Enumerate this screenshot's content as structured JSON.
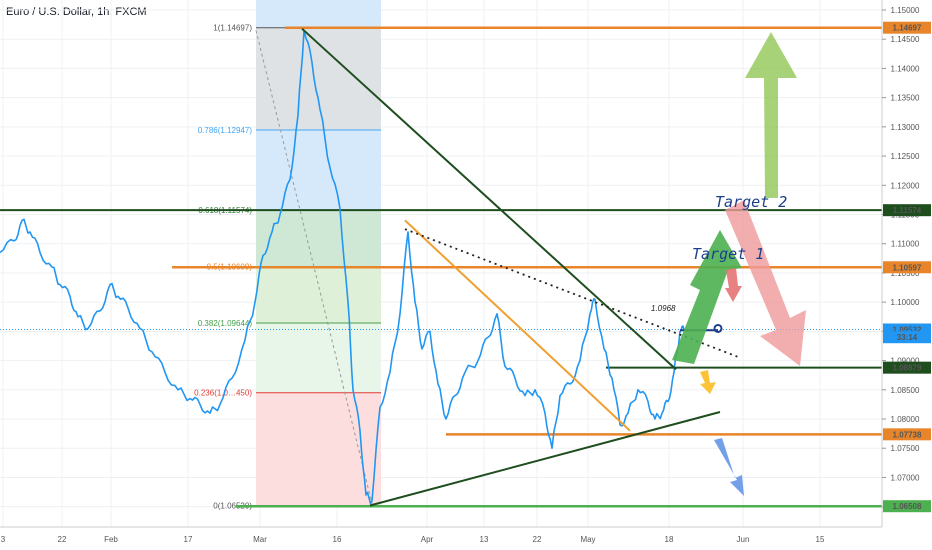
{
  "header": {
    "title": "Euro / U.S. Dollar, 1h, FXCM"
  },
  "colors": {
    "price": "#2196f3",
    "orange": "#e8852a",
    "darkgreen": "#1e4d1e",
    "green": "#4caf50",
    "grid": "#eef0f3"
  },
  "chart_data": {
    "type": "line",
    "title": "Euro / U.S. Dollar, 1h, FXCM",
    "ylim": [
      1.062,
      1.152
    ],
    "y_ticks": [
      "1.15000",
      "1.14500",
      "1.14000",
      "1.13500",
      "1.13000",
      "1.12500",
      "1.12000",
      "1.11500",
      "1.11000",
      "1.10500",
      "1.10000",
      "1.09500",
      "1.09000",
      "1.08500",
      "1.08000",
      "1.07500",
      "1.07000",
      "1.06500"
    ],
    "x_ticks": [
      "3",
      "22",
      "Feb",
      "17",
      "Mar",
      "16",
      "Apr",
      "13",
      "22",
      "May",
      "18",
      "Jun",
      "15"
    ],
    "fib_levels": [
      {
        "label": "1(1.14697)",
        "value": 1.14697,
        "color": "#555555"
      },
      {
        "label": "0.786(1.12947)",
        "value": 1.12947,
        "color": "#42a5f5"
      },
      {
        "label": "0.618(1.11574)",
        "value": 1.11574,
        "color": "#2e7d32"
      },
      {
        "label": "0.5(1.10609)",
        "value": 1.10609,
        "color": "#e8852a"
      },
      {
        "label": "0.382(1.09644)",
        "value": 1.09644,
        "color": "#43a047"
      },
      {
        "label": "0.236(1.0…450)",
        "value": 1.0845,
        "color": "#e53935"
      },
      {
        "label": "0(1.06520)",
        "value": 1.0652,
        "color": "#555555"
      }
    ],
    "price_labels": [
      {
        "text": "1.14697",
        "value": 1.14697,
        "bg": "#e8852a"
      },
      {
        "text": "1.11574",
        "value": 1.11574,
        "bg": "#1e4d1e"
      },
      {
        "text": "1.10597",
        "value": 1.10597,
        "bg": "#e8852a"
      },
      {
        "text": "1.09532",
        "value": 1.09532,
        "bg": "#2196f3"
      },
      {
        "text": "33:14",
        "value": 1.094,
        "bg": "#2196f3"
      },
      {
        "text": "1.08879",
        "value": 1.08879,
        "bg": "#1e4d1e"
      },
      {
        "text": "1.07738",
        "value": 1.07738,
        "bg": "#e8852a"
      },
      {
        "text": "1.06508",
        "value": 1.06508,
        "bg": "#4caf50"
      }
    ],
    "annotations": {
      "target1": "Target 1",
      "target2": "Target 2",
      "price_note": "1.0968"
    },
    "series": [
      {
        "values": [
          [
            0,
            1.1085
          ],
          [
            14,
            1.1105
          ],
          [
            22,
            1.114
          ],
          [
            30,
            1.112
          ],
          [
            40,
            1.1085
          ],
          [
            52,
            1.106
          ],
          [
            60,
            1.103
          ],
          [
            70,
            1.101
          ],
          [
            78,
            1.0975
          ],
          [
            88,
            1.0955
          ],
          [
            100,
            1.0985
          ],
          [
            110,
            1.103
          ],
          [
            118,
            1.101
          ],
          [
            128,
            1.099
          ],
          [
            140,
            1.0955
          ],
          [
            152,
            1.0915
          ],
          [
            165,
            1.088
          ],
          [
            178,
            1.085
          ],
          [
            190,
            1.0835
          ],
          [
            200,
            1.0825
          ],
          [
            210,
            1.081
          ],
          [
            220,
            1.0825
          ],
          [
            232,
            1.087
          ],
          [
            245,
            1.0935
          ],
          [
            255,
            1.1
          ],
          [
            263,
            1.108
          ],
          [
            272,
            1.112
          ],
          [
            280,
            1.115
          ],
          [
            290,
            1.121
          ],
          [
            298,
            1.132
          ],
          [
            304,
            1.1465
          ],
          [
            312,
            1.141
          ],
          [
            320,
            1.133
          ],
          [
            330,
            1.123
          ],
          [
            340,
            1.116
          ],
          [
            348,
            1.1
          ],
          [
            353,
            1.085
          ],
          [
            360,
            1.078
          ],
          [
            366,
            1.067
          ],
          [
            372,
            1.066
          ],
          [
            380,
            1.082
          ],
          [
            390,
            1.088
          ],
          [
            400,
            1.098
          ],
          [
            408,
            1.112
          ],
          [
            415,
            1.1
          ],
          [
            422,
            1.092
          ],
          [
            430,
            1.095
          ],
          [
            438,
            1.086
          ],
          [
            446,
            1.08
          ],
          [
            455,
            1.084
          ],
          [
            465,
            1.088
          ],
          [
            478,
            1.09
          ],
          [
            488,
            1.094
          ],
          [
            497,
            1.098
          ],
          [
            505,
            1.089
          ],
          [
            515,
            1.087
          ],
          [
            525,
            1.084
          ],
          [
            535,
            1.085
          ],
          [
            545,
            1.081
          ],
          [
            552,
            1.075
          ],
          [
            560,
            1.084
          ],
          [
            570,
            1.086
          ],
          [
            580,
            1.09
          ],
          [
            590,
            1.098
          ],
          [
            595,
            1.1005
          ],
          [
            604,
            1.092
          ],
          [
            612,
            1.087
          ],
          [
            620,
            1.079
          ],
          [
            628,
            1.081
          ],
          [
            638,
            1.085
          ],
          [
            648,
            1.083
          ],
          [
            655,
            1.08
          ],
          [
            662,
            1.081
          ],
          [
            668,
            1.083
          ],
          [
            674,
            1.088
          ],
          [
            680,
            1.095
          ],
          [
            684,
            1.0953
          ]
        ]
      }
    ]
  }
}
